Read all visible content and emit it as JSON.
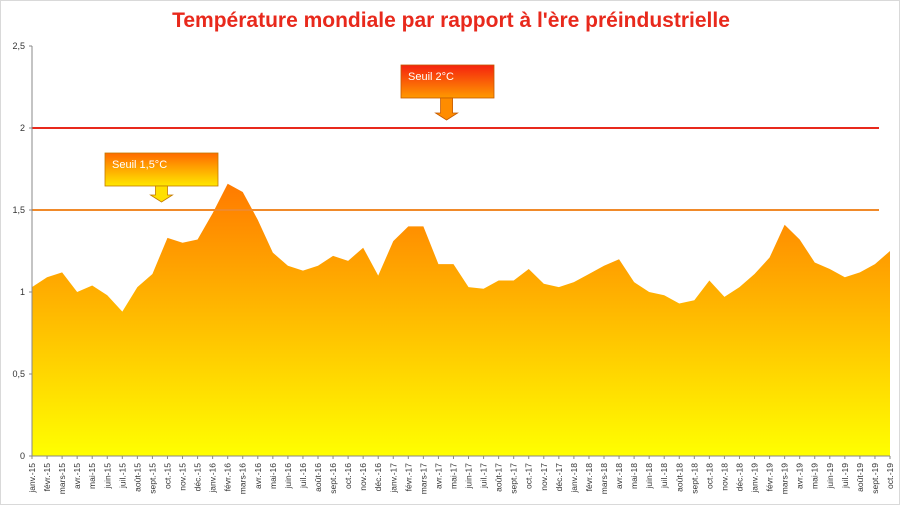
{
  "chart_data": {
    "type": "area",
    "title": "Température mondiale par rapport à l'ère préindustrielle",
    "ylim": [
      0,
      2.5
    ],
    "y_ticks": [
      "0",
      "0,5",
      "1",
      "1,5",
      "2",
      "2,5"
    ],
    "y_tick_values": [
      0,
      0.5,
      1,
      1.5,
      2,
      2.5
    ],
    "grid": false,
    "categories": [
      "janv.-15",
      "févr.-15",
      "mars-15",
      "avr.-15",
      "mai-15",
      "juin-15",
      "juil.-15",
      "août-15",
      "sept.-15",
      "oct.-15",
      "nov.-15",
      "déc.-15",
      "janv.-16",
      "févr.-16",
      "mars-16",
      "avr.-16",
      "mai-16",
      "juin-16",
      "juil.-16",
      "août-16",
      "sept.-16",
      "oct.-16",
      "nov.-16",
      "déc.-16",
      "janv.-17",
      "févr.-17",
      "mars-17",
      "avr.-17",
      "mai-17",
      "juin-17",
      "juil.-17",
      "août-17",
      "sept.-17",
      "oct.-17",
      "nov.-17",
      "déc.-17",
      "janv.-18",
      "févr.-18",
      "mars-18",
      "avr.-18",
      "mai-18",
      "juin-18",
      "juil.-18",
      "août-18",
      "sept.-18",
      "oct.-18",
      "nov.-18",
      "déc.-18",
      "janv.-19",
      "févr.-19",
      "mars-19",
      "avr.-19",
      "mai-19",
      "juin-19",
      "juil.-19",
      "août-19",
      "sept.-19",
      "oct.-19"
    ],
    "values": [
      1.03,
      1.09,
      1.12,
      1.0,
      1.04,
      0.98,
      0.88,
      1.03,
      1.11,
      1.33,
      1.3,
      1.32,
      1.48,
      1.66,
      1.61,
      1.44,
      1.24,
      1.16,
      1.13,
      1.16,
      1.22,
      1.19,
      1.27,
      1.1,
      1.31,
      1.4,
      1.4,
      1.17,
      1.17,
      1.03,
      1.02,
      1.07,
      1.07,
      1.14,
      1.05,
      1.03,
      1.06,
      1.11,
      1.16,
      1.2,
      1.06,
      1.0,
      0.98,
      0.93,
      0.95,
      1.07,
      0.97,
      1.03,
      1.11,
      1.21,
      1.41,
      1.32,
      1.18,
      1.14,
      1.09,
      1.12,
      1.17,
      1.25
    ],
    "thresholds": [
      {
        "label": "Seuil 2°C",
        "value": 2.0,
        "color": "#e8291c"
      },
      {
        "label": "Seuil 1,5°C",
        "value": 1.5,
        "color": "#f08a2a"
      }
    ],
    "fill_colors": {
      "top": "#ff7a00",
      "bottom": "#ffff00"
    }
  }
}
